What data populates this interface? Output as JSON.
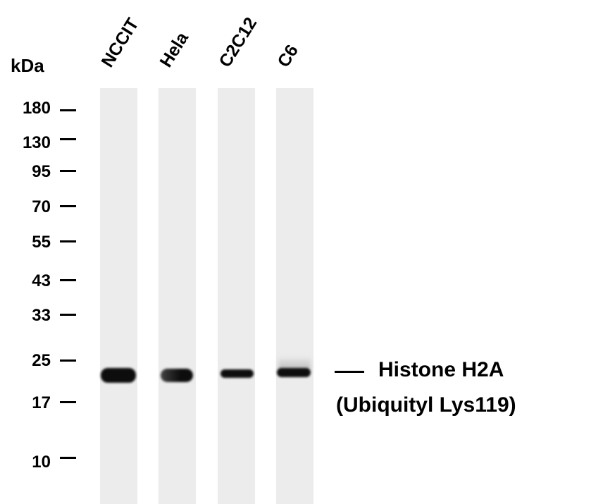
{
  "unit_label": "kDa",
  "markers": [
    "180",
    "130",
    "95",
    "70",
    "55",
    "43",
    "33",
    "25",
    "17",
    "10"
  ],
  "lanes": [
    "NCCIT",
    "Hela",
    "C2C12",
    "C6"
  ],
  "target": {
    "line1": "Histone H2A",
    "line2": "(Ubiquityl Lys119)"
  },
  "colors": {
    "background": "#ffffff",
    "lane": "#ececec",
    "band": "#0d0d0d"
  }
}
